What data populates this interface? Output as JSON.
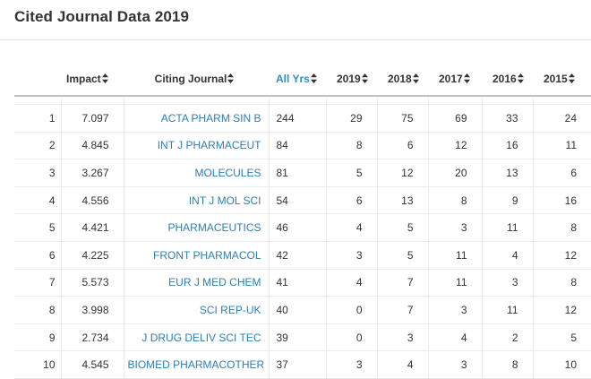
{
  "page": {
    "title": "Cited Journal Data 2019"
  },
  "columns": {
    "impact": "Impact",
    "citing_journal": "Citing Journal",
    "all_yrs": "All Yrs",
    "years": [
      "2019",
      "2018",
      "2017",
      "2016",
      "2015"
    ]
  },
  "colors": {
    "accent_link": "#2e7fb0",
    "active_header": "#2e8fc4"
  },
  "icons": {
    "sort": "sort-up-down-icon"
  },
  "rows": [
    {
      "rank": "1",
      "impact": "7.097",
      "journal": "ACTA PHARM SIN B",
      "all_yrs": "244",
      "years": [
        "29",
        "75",
        "69",
        "33",
        "24"
      ]
    },
    {
      "rank": "2",
      "impact": "4.845",
      "journal": "INT J PHARMACEUT",
      "all_yrs": "84",
      "years": [
        "8",
        "6",
        "12",
        "16",
        "11"
      ]
    },
    {
      "rank": "3",
      "impact": "3.267",
      "journal": "MOLECULES",
      "all_yrs": "81",
      "years": [
        "5",
        "12",
        "20",
        "13",
        "6"
      ]
    },
    {
      "rank": "4",
      "impact": "4.556",
      "journal": "INT J MOL SCI",
      "all_yrs": "54",
      "years": [
        "6",
        "13",
        "8",
        "9",
        "16"
      ]
    },
    {
      "rank": "5",
      "impact": "4.421",
      "journal": "PHARMACEUTICS",
      "all_yrs": "46",
      "years": [
        "4",
        "5",
        "3",
        "11",
        "8"
      ]
    },
    {
      "rank": "6",
      "impact": "4.225",
      "journal": "FRONT PHARMACOL",
      "all_yrs": "42",
      "years": [
        "3",
        "5",
        "11",
        "4",
        "12"
      ]
    },
    {
      "rank": "7",
      "impact": "5.573",
      "journal": "EUR J MED CHEM",
      "all_yrs": "41",
      "years": [
        "4",
        "7",
        "11",
        "3",
        "8"
      ]
    },
    {
      "rank": "8",
      "impact": "3.998",
      "journal": "SCI REP-UK",
      "all_yrs": "40",
      "years": [
        "0",
        "7",
        "3",
        "11",
        "12"
      ]
    },
    {
      "rank": "9",
      "impact": "2.734",
      "journal": "J DRUG DELIV SCI TEC",
      "all_yrs": "39",
      "years": [
        "0",
        "3",
        "4",
        "2",
        "5"
      ]
    },
    {
      "rank": "10",
      "impact": "4.545",
      "journal": "BIOMED PHARMACOTHER",
      "all_yrs": "37",
      "years": [
        "3",
        "4",
        "3",
        "8",
        "10"
      ]
    }
  ]
}
